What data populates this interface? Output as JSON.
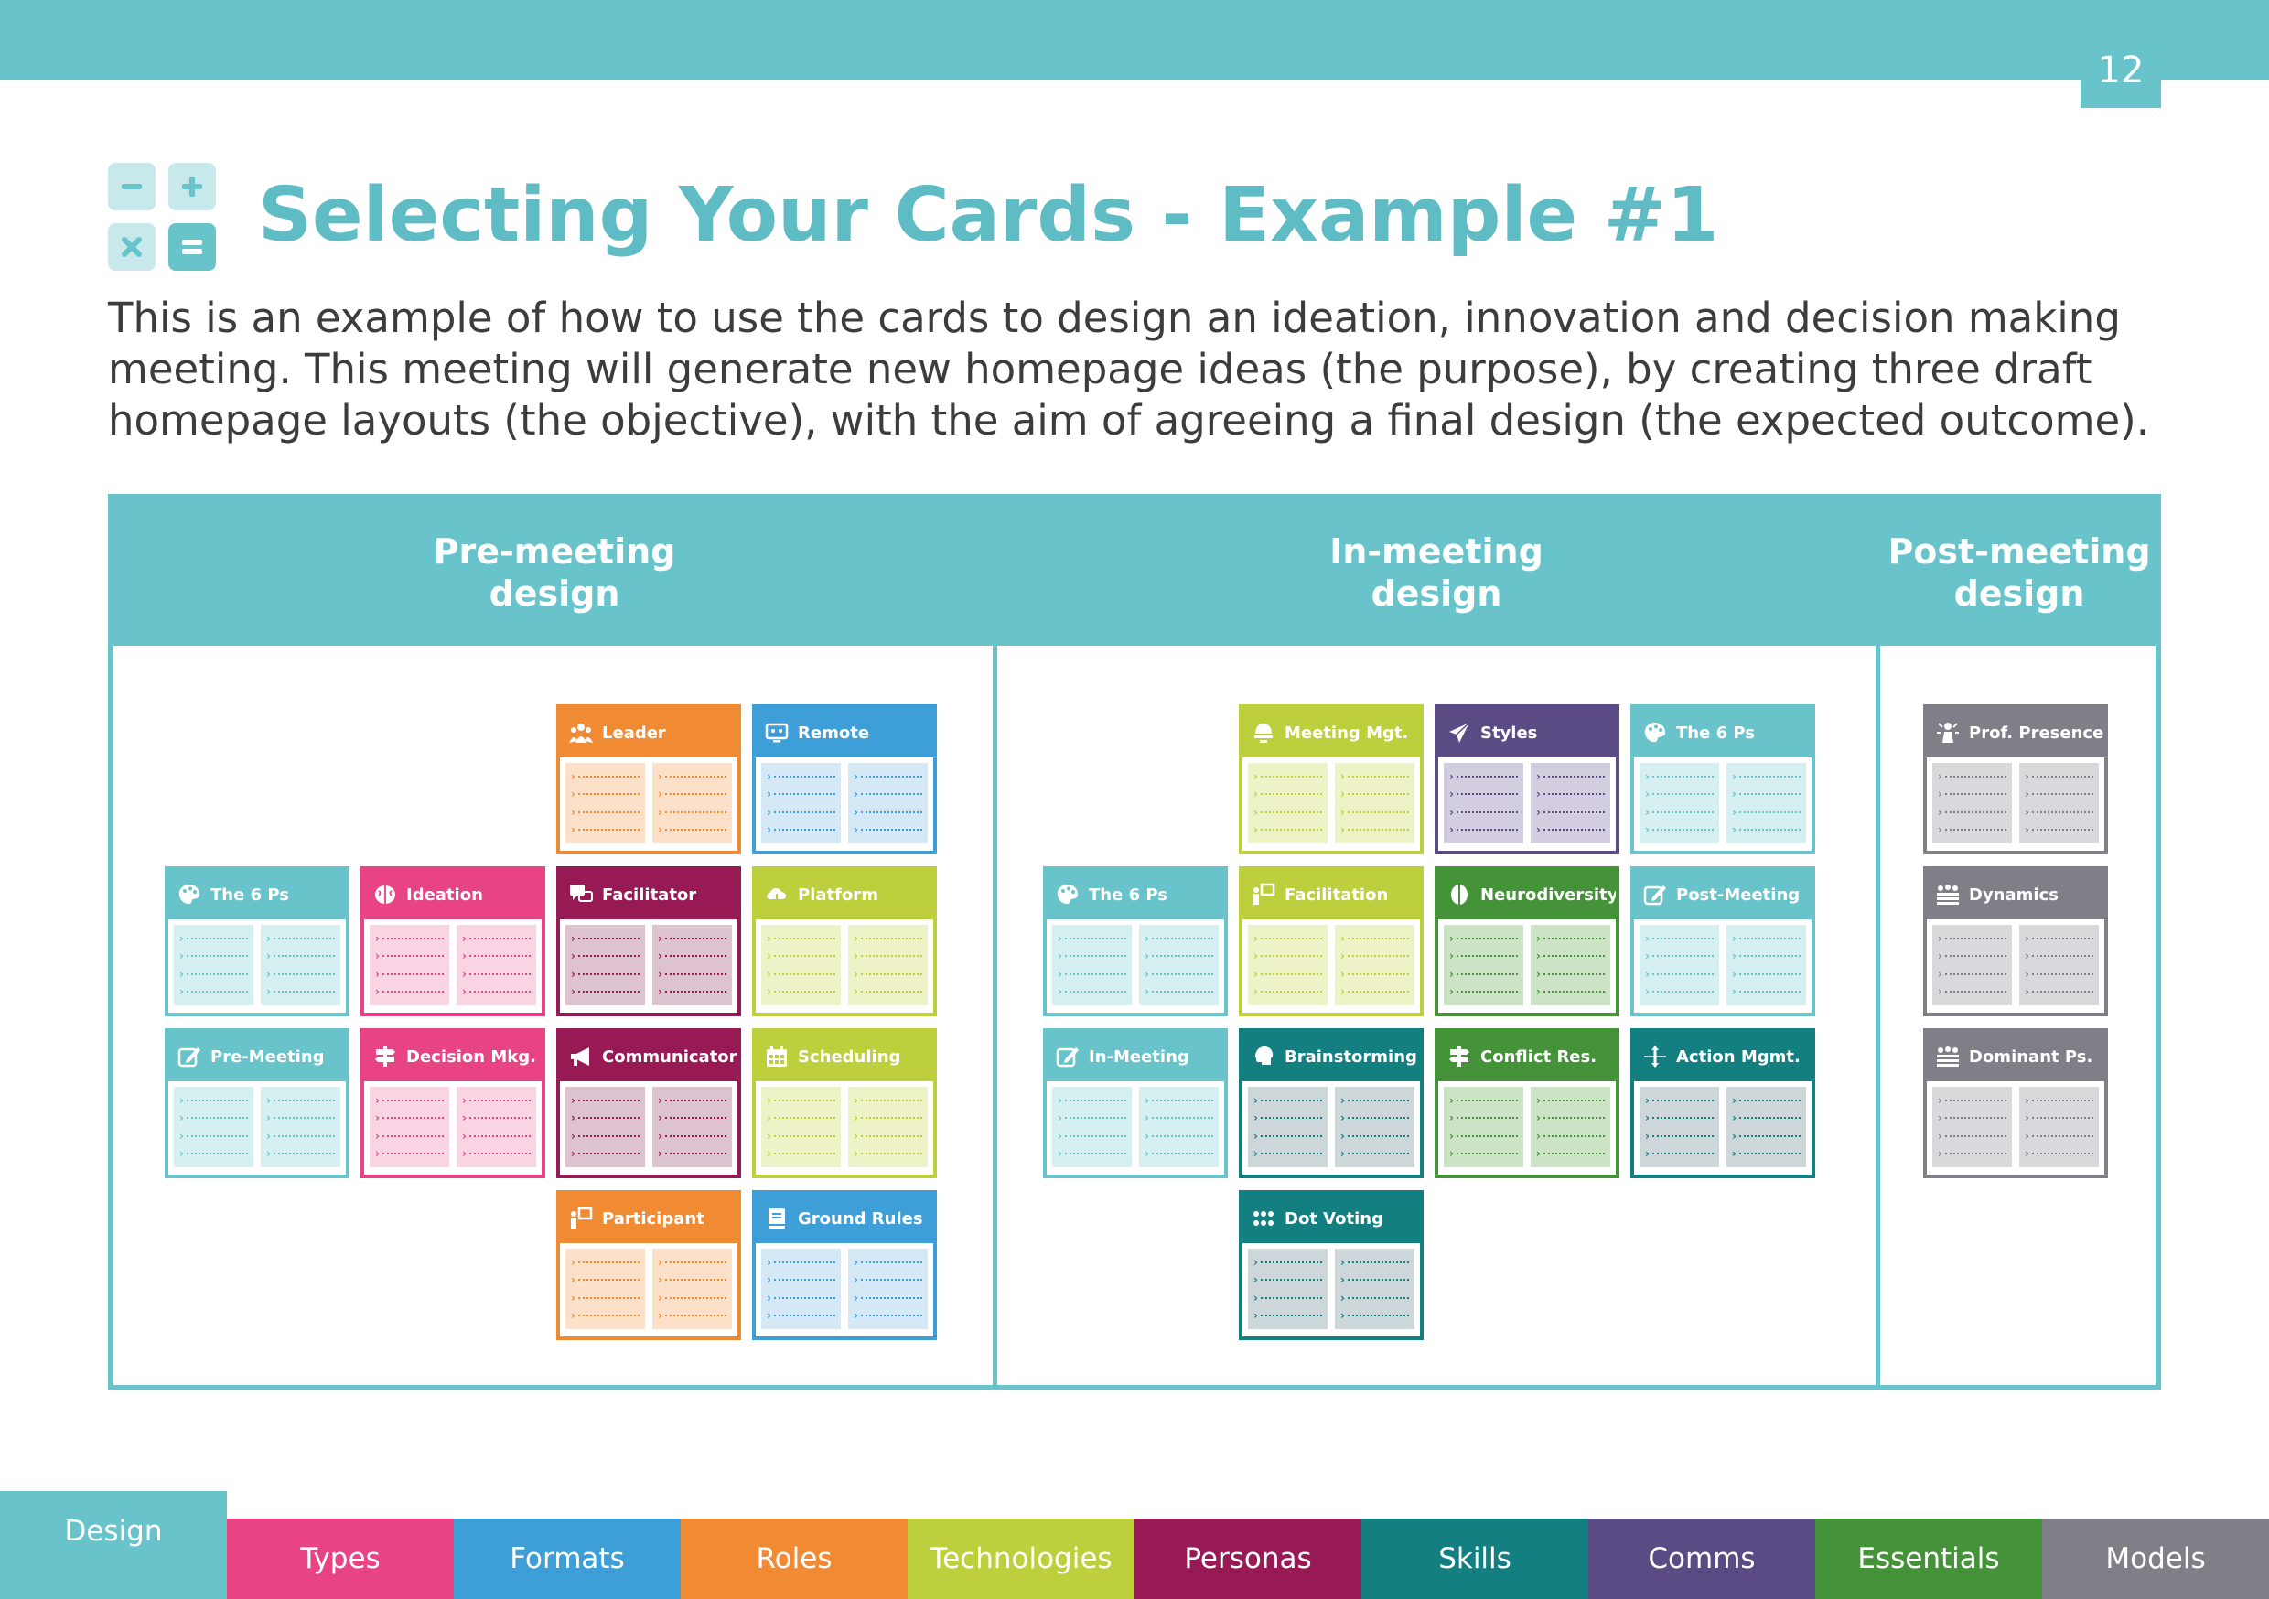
{
  "page_number": "12",
  "title": "Selecting Your Cards - Example #1",
  "intro": "This is an example of how to use the cards to design an ideation, innovation and decision making meeting. This meeting will generate new homepage ideas (the purpose), by creating three draft homepage layouts (the objective), with the aim of agreeing a final design (the expected outcome).",
  "columns": [
    {
      "label": "Pre-meeting\ndesign"
    },
    {
      "label": "In-meeting\ndesign"
    },
    {
      "label": "Post-meeting\ndesign"
    }
  ],
  "colors": {
    "teal": "#69c3cb",
    "pink": "#e84383",
    "blue": "#3e9ed8",
    "orange": "#f08a33",
    "lime": "#bdcf3c",
    "maroon": "#981a55",
    "darkteal": "#137f80",
    "purple": "#5b4b85",
    "green": "#449338",
    "gray": "#7e7f87"
  },
  "cards": [
    {
      "label": "Leader",
      "color": "orange",
      "icon": "people-icon"
    },
    {
      "label": "Remote",
      "color": "blue",
      "icon": "monitor-icon"
    },
    {
      "label": "The 6 Ps",
      "color": "teal",
      "icon": "palette-icon"
    },
    {
      "label": "Ideation",
      "color": "pink",
      "icon": "brain-icon"
    },
    {
      "label": "Facilitator",
      "color": "maroon",
      "icon": "chat-icon"
    },
    {
      "label": "Platform",
      "color": "lime",
      "icon": "cloud-icon"
    },
    {
      "label": "Pre-Meeting",
      "color": "teal",
      "icon": "edit-icon"
    },
    {
      "label": "Decision Mkg.",
      "color": "pink",
      "icon": "signpost-icon"
    },
    {
      "label": "Communicator",
      "color": "maroon",
      "icon": "megaphone-icon"
    },
    {
      "label": "Scheduling",
      "color": "lime",
      "icon": "calendar-icon"
    },
    {
      "label": "Participant",
      "color": "orange",
      "icon": "person-board-icon"
    },
    {
      "label": "Ground Rules",
      "color": "blue",
      "icon": "book-icon"
    },
    {
      "label": "Meeting Mgt.",
      "color": "lime",
      "icon": "bell-icon"
    },
    {
      "label": "Styles",
      "color": "purple",
      "icon": "paper-plane-icon"
    },
    {
      "label": "The 6 Ps",
      "color": "teal",
      "icon": "palette-icon"
    },
    {
      "label": "The 6 Ps",
      "color": "teal",
      "icon": "palette-icon"
    },
    {
      "label": "Facilitation",
      "color": "lime",
      "icon": "person-board-icon"
    },
    {
      "label": "Neurodiversity",
      "color": "green",
      "icon": "leaf-icon"
    },
    {
      "label": "Post-Meeting",
      "color": "teal",
      "icon": "edit-icon"
    },
    {
      "label": "In-Meeting",
      "color": "teal",
      "icon": "edit-icon"
    },
    {
      "label": "Brainstorming",
      "color": "darkteal",
      "icon": "head-icon"
    },
    {
      "label": "Conflict Res.",
      "color": "green",
      "icon": "signpost-icon"
    },
    {
      "label": "Action Mgmt.",
      "color": "darkteal",
      "icon": "arrows-icon"
    },
    {
      "label": "Dot Voting",
      "color": "darkteal",
      "icon": "dots-icon"
    },
    {
      "label": "Prof. Presence",
      "color": "gray",
      "icon": "star-person-icon"
    },
    {
      "label": "Dynamics",
      "color": "gray",
      "icon": "group-icon"
    },
    {
      "label": "Dominant Ps.",
      "color": "gray",
      "icon": "group-icon"
    }
  ],
  "tabs": [
    {
      "label": "Design",
      "color": "#69c3cb",
      "active": true
    },
    {
      "label": "Types",
      "color": "#e84383"
    },
    {
      "label": "Formats",
      "color": "#3e9ed8"
    },
    {
      "label": "Roles",
      "color": "#f08a33"
    },
    {
      "label": "Technologies",
      "color": "#bdcf3c"
    },
    {
      "label": "Personas",
      "color": "#981a55"
    },
    {
      "label": "Skills",
      "color": "#137f80"
    },
    {
      "label": "Comms",
      "color": "#5b4b85"
    },
    {
      "label": "Essentials",
      "color": "#449338"
    },
    {
      "label": "Models",
      "color": "#7e7f87"
    }
  ]
}
